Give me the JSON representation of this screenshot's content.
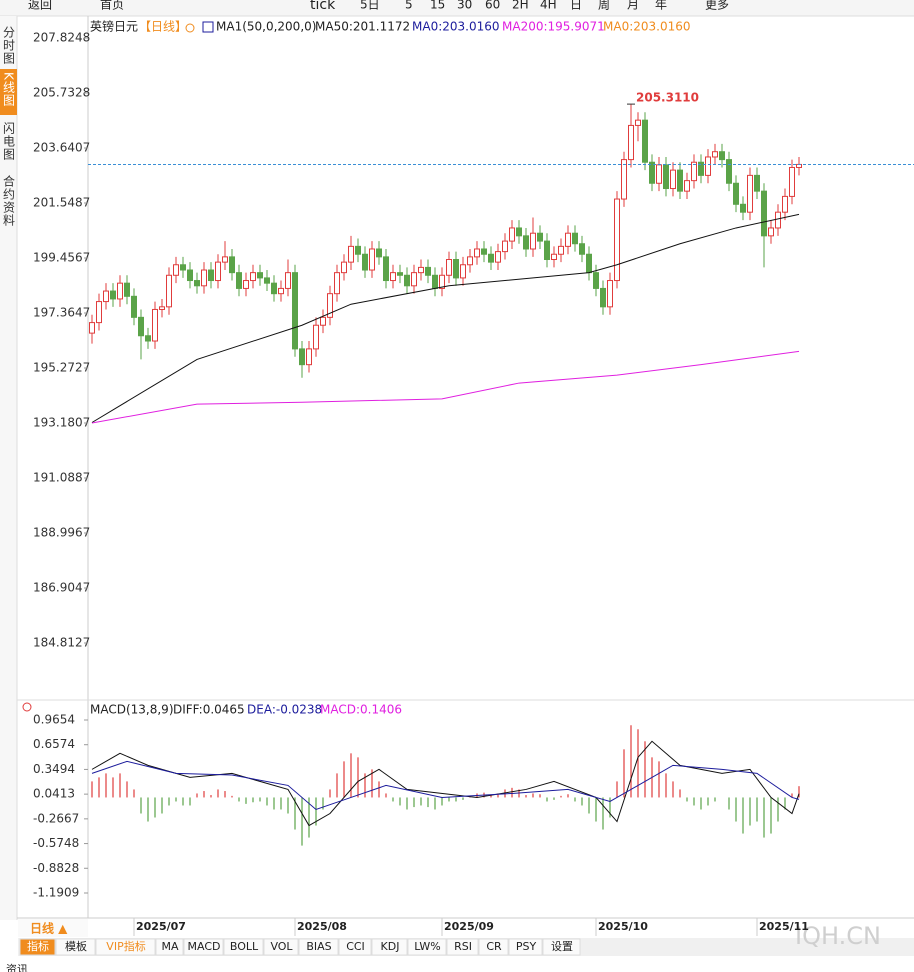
{
  "toolbar": {
    "back": "返回",
    "home": "首页",
    "tick": "tick",
    "periods": [
      "5日",
      "5",
      "15",
      "30",
      "60",
      "2H",
      "4H",
      "日",
      "周",
      "月",
      "年"
    ],
    "more": "更多"
  },
  "side_tabs": [
    "分时图",
    "K线图",
    "闪电图",
    "合约资料"
  ],
  "header": {
    "symbol": "英镑日元",
    "period": "【日线】",
    "indicator": "MA1(50,0,200,0)",
    "ma50": "MA50:201.1172",
    "ma0": "MA0:203.0160",
    "ma200": "MA200:195.9071",
    "ma0b": "MA0:203.0160"
  },
  "macd_header": {
    "name": "MACD(13,8,9)",
    "diff": "DIFF:0.0465",
    "dea": "DEA:-0.0238",
    "macd": "MACD:0.1406"
  },
  "footer": {
    "period_button": "日线 ▲",
    "tabs": [
      "指标",
      "模板",
      "VIP指标",
      "MA",
      "MACD",
      "BOLL",
      "VOL",
      "BIAS",
      "CCI",
      "KDJ",
      "LW%",
      "RSI",
      "CR",
      "PSY",
      "设置"
    ],
    "watermark": "IQH.CN",
    "news": "资讯"
  },
  "chart_data": [
    {
      "type": "candlestick",
      "up_color": "#e03c3c",
      "down_color": "#5aa348",
      "price_line_color": "#3a8fd6",
      "ylim": [
        182.645,
        208.586
      ],
      "yticks": [
        207.8248,
        205.7328,
        203.6407,
        201.5487,
        199.4567,
        197.3647,
        195.2727,
        193.1807,
        191.0887,
        188.9967,
        186.9047,
        184.8127
      ],
      "categories": [
        null,
        null,
        null,
        null,
        null,
        null,
        "2025/07",
        null,
        null,
        null,
        null,
        null,
        null,
        null,
        null,
        null,
        null,
        null,
        null,
        null,
        null,
        null,
        null,
        null,
        null,
        null,
        null,
        null,
        null,
        "2025/08",
        null,
        null,
        null,
        null,
        null,
        null,
        null,
        null,
        null,
        null,
        null,
        null,
        null,
        null,
        null,
        null,
        null,
        null,
        null,
        null,
        "2025/09",
        null,
        null,
        null,
        null,
        null,
        null,
        null,
        null,
        null,
        null,
        null,
        null,
        null,
        null,
        null,
        null,
        null,
        null,
        null,
        null,
        null,
        "2025/10",
        null,
        null,
        null,
        null,
        null,
        null,
        null,
        null,
        null,
        null,
        null,
        null,
        null,
        null,
        null,
        null,
        null,
        null,
        null,
        null,
        null,
        null,
        "2025/11",
        null,
        null,
        null,
        null,
        null,
        null
      ],
      "ohlc": [
        [
          196.6,
          197.3,
          196.2,
          197.0
        ],
        [
          197.0,
          198.1,
          196.7,
          197.8
        ],
        [
          197.8,
          198.5,
          197.5,
          198.2
        ],
        [
          198.2,
          198.5,
          197.6,
          197.9
        ],
        [
          197.9,
          198.8,
          197.6,
          198.5
        ],
        [
          198.5,
          198.8,
          197.7,
          198.0
        ],
        [
          198.0,
          198.3,
          196.9,
          197.2
        ],
        [
          197.2,
          197.5,
          195.6,
          196.5
        ],
        [
          196.5,
          196.8,
          196.0,
          196.3
        ],
        [
          196.3,
          197.8,
          196.0,
          197.5
        ],
        [
          197.5,
          197.9,
          197.2,
          197.6
        ],
        [
          197.6,
          199.1,
          197.3,
          198.8
        ],
        [
          198.8,
          199.5,
          198.5,
          199.2
        ],
        [
          199.2,
          199.5,
          198.7,
          199.0
        ],
        [
          199.0,
          199.3,
          198.3,
          198.6
        ],
        [
          198.6,
          198.9,
          198.1,
          198.4
        ],
        [
          198.4,
          199.3,
          198.1,
          199.0
        ],
        [
          199.0,
          199.3,
          198.3,
          198.6
        ],
        [
          198.6,
          199.6,
          198.3,
          199.3
        ],
        [
          199.3,
          200.1,
          199.0,
          199.5
        ],
        [
          199.5,
          199.8,
          198.6,
          198.9
        ],
        [
          198.9,
          199.2,
          198.0,
          198.3
        ],
        [
          198.3,
          198.9,
          198.0,
          198.6
        ],
        [
          198.6,
          199.2,
          198.3,
          198.9
        ],
        [
          198.9,
          199.2,
          198.4,
          198.7
        ],
        [
          198.7,
          199.0,
          198.2,
          198.5
        ],
        [
          198.5,
          198.8,
          197.8,
          198.1
        ],
        [
          198.1,
          198.6,
          197.8,
          198.3
        ],
        [
          198.3,
          199.4,
          198.0,
          198.9
        ],
        [
          198.9,
          199.2,
          195.7,
          196.0
        ],
        [
          196.0,
          196.3,
          194.9,
          195.4
        ],
        [
          195.4,
          196.3,
          195.1,
          196.0
        ],
        [
          196.0,
          197.2,
          195.7,
          196.9
        ],
        [
          196.9,
          197.5,
          196.6,
          197.2
        ],
        [
          197.2,
          198.4,
          196.9,
          198.1
        ],
        [
          198.1,
          199.2,
          197.8,
          198.9
        ],
        [
          198.9,
          199.6,
          198.6,
          199.3
        ],
        [
          199.3,
          200.3,
          199.0,
          199.9
        ],
        [
          199.9,
          200.2,
          199.3,
          199.6
        ],
        [
          199.6,
          199.9,
          198.7,
          199.0
        ],
        [
          199.0,
          200.1,
          198.7,
          199.8
        ],
        [
          199.8,
          200.1,
          199.2,
          199.5
        ],
        [
          199.5,
          199.8,
          198.3,
          198.6
        ],
        [
          198.6,
          199.2,
          198.3,
          198.9
        ],
        [
          198.9,
          199.2,
          198.5,
          198.8
        ],
        [
          198.8,
          199.1,
          198.1,
          198.4
        ],
        [
          198.4,
          199.2,
          198.1,
          198.9
        ],
        [
          198.9,
          199.4,
          198.6,
          199.1
        ],
        [
          199.1,
          199.4,
          198.5,
          198.8
        ],
        [
          198.8,
          199.1,
          198.0,
          198.3
        ],
        [
          198.3,
          199.1,
          198.0,
          198.8
        ],
        [
          198.8,
          199.7,
          198.5,
          199.4
        ],
        [
          199.4,
          199.7,
          198.4,
          198.7
        ],
        [
          198.7,
          199.5,
          198.4,
          199.2
        ],
        [
          199.2,
          199.8,
          198.9,
          199.5
        ],
        [
          199.5,
          200.1,
          199.2,
          199.8
        ],
        [
          199.8,
          200.1,
          199.3,
          199.6
        ],
        [
          199.6,
          199.9,
          199.0,
          199.3
        ],
        [
          199.3,
          200.0,
          199.0,
          199.7
        ],
        [
          199.7,
          200.4,
          199.4,
          200.1
        ],
        [
          200.1,
          200.9,
          199.8,
          200.6
        ],
        [
          200.6,
          200.9,
          200.0,
          200.3
        ],
        [
          200.3,
          200.6,
          199.5,
          199.8
        ],
        [
          199.8,
          201.0,
          199.5,
          200.4
        ],
        [
          200.4,
          200.7,
          199.8,
          200.1
        ],
        [
          200.1,
          200.4,
          199.1,
          199.4
        ],
        [
          199.4,
          199.9,
          199.1,
          199.6
        ],
        [
          199.6,
          200.2,
          199.3,
          199.9
        ],
        [
          199.9,
          200.7,
          199.6,
          200.4
        ],
        [
          200.4,
          200.7,
          199.7,
          200.0
        ],
        [
          200.0,
          200.3,
          199.3,
          199.6
        ],
        [
          199.6,
          199.9,
          198.6,
          198.9
        ],
        [
          198.9,
          199.2,
          198.0,
          198.3
        ],
        [
          198.3,
          198.6,
          197.3,
          197.6
        ],
        [
          197.6,
          198.9,
          197.3,
          198.6
        ],
        [
          198.6,
          202.0,
          198.3,
          201.7
        ],
        [
          201.7,
          203.5,
          201.4,
          203.2
        ],
        [
          203.2,
          205.311,
          202.9,
          204.5
        ],
        [
          204.5,
          205.0,
          203.9,
          204.7
        ],
        [
          204.7,
          205.0,
          202.8,
          203.1
        ],
        [
          203.1,
          203.4,
          202.0,
          202.3
        ],
        [
          202.3,
          203.3,
          202.0,
          203.0
        ],
        [
          203.0,
          203.3,
          201.8,
          202.1
        ],
        [
          202.1,
          203.1,
          201.8,
          202.8
        ],
        [
          202.8,
          203.1,
          201.7,
          202.0
        ],
        [
          202.0,
          202.7,
          201.7,
          202.4
        ],
        [
          202.4,
          203.4,
          202.1,
          203.1
        ],
        [
          203.1,
          203.4,
          202.3,
          202.6
        ],
        [
          202.6,
          203.6,
          202.3,
          203.3
        ],
        [
          203.3,
          203.8,
          203.0,
          203.5
        ],
        [
          203.5,
          203.8,
          202.9,
          203.2
        ],
        [
          203.2,
          203.5,
          202.0,
          202.3
        ],
        [
          202.3,
          202.6,
          201.2,
          201.5
        ],
        [
          201.5,
          201.8,
          200.9,
          201.2
        ],
        [
          201.2,
          202.9,
          200.9,
          202.6
        ],
        [
          202.6,
          202.9,
          201.7,
          202.0
        ],
        [
          202.0,
          202.3,
          199.1,
          200.3
        ],
        [
          200.3,
          200.9,
          200.0,
          200.6
        ],
        [
          200.6,
          201.5,
          200.3,
          201.2
        ],
        [
          201.2,
          202.1,
          200.9,
          201.8
        ],
        [
          201.8,
          203.2,
          201.5,
          202.9
        ],
        [
          202.9,
          203.3,
          202.6,
          203.016
        ]
      ],
      "lines": [
        {
          "color": "#111111",
          "x": [
            0,
            15,
            30,
            37,
            51,
            71,
            75,
            84,
            92,
            101
          ],
          "values": [
            193.2,
            195.6,
            196.9,
            197.7,
            198.4,
            198.9,
            199.2,
            200.0,
            200.6,
            201.1172
          ]
        },
        {
          "color": "#e020e0",
          "x": [
            0,
            15,
            30,
            50,
            61,
            75,
            87,
            101
          ],
          "values": [
            193.18,
            193.9,
            193.97,
            194.1,
            194.7,
            195.0,
            195.4,
            195.9071
          ]
        }
      ],
      "annotation": {
        "label": "205.3110",
        "value": 205.311
      }
    },
    {
      "type": "macd",
      "up_color": "#e03c3c",
      "down_color": "#5aa348",
      "ylim": [
        -1.5025,
        1.1773
      ],
      "yticks": [
        0.9654,
        0.6574,
        0.3494,
        0.0413,
        -0.2667,
        -0.5748,
        -0.8828,
        -1.1909
      ],
      "values": [
        0.2,
        0.25,
        0.3,
        0.25,
        0.3,
        0.2,
        0.1,
        -0.2,
        -0.3,
        -0.25,
        -0.2,
        -0.1,
        -0.05,
        -0.1,
        -0.1,
        0.05,
        0.08,
        0.03,
        0.1,
        0.08,
        0.02,
        -0.05,
        -0.08,
        -0.06,
        -0.05,
        -0.1,
        -0.15,
        -0.15,
        -0.2,
        -0.4,
        -0.6,
        -0.5,
        -0.35,
        -0.15,
        0.1,
        0.3,
        0.45,
        0.55,
        0.5,
        0.3,
        0.35,
        0.2,
        0.05,
        -0.05,
        -0.1,
        -0.15,
        -0.12,
        -0.1,
        -0.12,
        -0.15,
        -0.1,
        -0.05,
        -0.05,
        -0.03,
        0.02,
        0.05,
        0.06,
        0.03,
        0.05,
        0.1,
        0.12,
        0.1,
        0.03,
        0.05,
        0.04,
        -0.05,
        -0.03,
        0.02,
        0.04,
        -0.05,
        -0.1,
        -0.2,
        -0.3,
        -0.4,
        -0.25,
        0.2,
        0.6,
        0.9,
        0.85,
        0.7,
        0.5,
        0.45,
        0.3,
        0.2,
        0.1,
        -0.05,
        -0.1,
        -0.15,
        -0.1,
        -0.05,
        0.0,
        -0.15,
        -0.3,
        -0.45,
        -0.35,
        -0.3,
        -0.5,
        -0.45,
        -0.3,
        -0.15,
        0.05,
        0.1406
      ],
      "lines": [
        {
          "color": "#111111",
          "x": [
            0,
            4,
            8,
            14,
            20,
            28,
            31,
            34,
            38,
            41,
            45,
            55,
            62,
            66,
            72,
            75,
            78,
            80,
            84,
            90,
            94,
            97,
            100,
            101
          ],
          "values": [
            0.35,
            0.55,
            0.4,
            0.25,
            0.3,
            0.1,
            -0.35,
            -0.2,
            0.2,
            0.35,
            0.1,
            0.0,
            0.1,
            0.2,
            0.0,
            -0.3,
            0.5,
            0.7,
            0.4,
            0.3,
            0.35,
            0.0,
            -0.2,
            0.0465
          ]
        },
        {
          "color": "#1c1c9c",
          "x": [
            0,
            5,
            12,
            20,
            28,
            32,
            37,
            42,
            50,
            60,
            68,
            74,
            79,
            83,
            90,
            95,
            100,
            101
          ],
          "values": [
            0.3,
            0.45,
            0.3,
            0.28,
            0.15,
            -0.15,
            0.0,
            0.15,
            0.0,
            0.05,
            0.1,
            -0.05,
            0.2,
            0.4,
            0.35,
            0.3,
            0.0,
            -0.0238
          ]
        }
      ]
    }
  ]
}
